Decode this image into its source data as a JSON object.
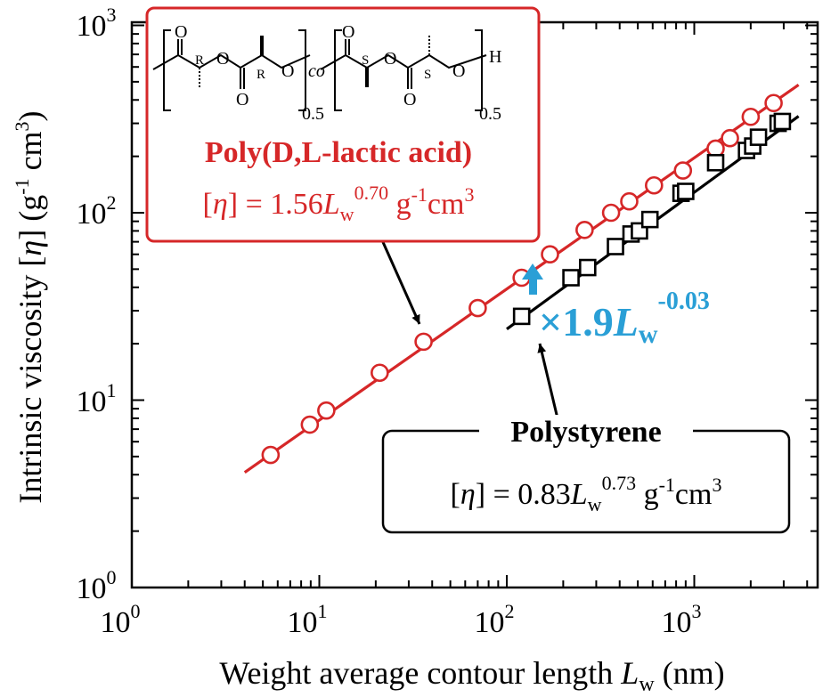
{
  "chart_data": {
    "type": "scatter",
    "title": "",
    "xscale": "log",
    "yscale": "log",
    "xlim": [
      1,
      4000
    ],
    "ylim": [
      1,
      1000
    ],
    "xticks": [
      {
        "value": 1,
        "base": "10",
        "exp": "0"
      },
      {
        "value": 10,
        "base": "10",
        "exp": "1"
      },
      {
        "value": 100,
        "base": "10",
        "exp": "2"
      },
      {
        "value": 1000,
        "base": "10",
        "exp": "3"
      }
    ],
    "yticks": [
      {
        "value": 1,
        "base": "10",
        "exp": "0"
      },
      {
        "value": 10,
        "base": "10",
        "exp": "1"
      },
      {
        "value": 100,
        "base": "10",
        "exp": "2"
      },
      {
        "value": 1000,
        "base": "10",
        "exp": "3"
      }
    ],
    "xlabel": {
      "main": "Weight average contour length ",
      "var": "L",
      "sub": "w",
      "unit": " (nm)"
    },
    "ylabel": {
      "main": "Intrinsic viscosity [",
      "var": "η",
      "mid": "] (g",
      "exp1": "-1",
      "mid2": " cm",
      "exp2": "3",
      "end": ")"
    },
    "series": [
      {
        "name": "Poly(D,L-lactic acid)",
        "color": "#d62728",
        "marker": "circle",
        "x": [
          5.5,
          8.9,
          10.9,
          21,
          36,
          70,
          120,
          170,
          260,
          360,
          450,
          610,
          870,
          1300,
          1550,
          2000,
          2650
        ],
        "y": [
          5.1,
          7.4,
          8.8,
          14,
          20.5,
          31,
          45,
          60,
          81,
          100,
          115,
          140,
          168,
          220,
          250,
          325,
          385
        ],
        "fit": {
          "a": 1.56,
          "b": 0.7,
          "xmin": 4,
          "xmax": 3600
        }
      },
      {
        "name": "Polystyrene",
        "color": "#000000",
        "marker": "square",
        "x": [
          120,
          220,
          270,
          380,
          460,
          510,
          580,
          850,
          900,
          1300,
          1900,
          2050,
          2200,
          2800,
          2950
        ],
        "y": [
          28,
          45,
          51,
          66,
          77,
          80,
          92,
          127,
          130,
          185,
          215,
          227,
          253,
          300,
          307
        ],
        "fit": {
          "a": 0.83,
          "b": 0.73,
          "xmin": 100,
          "xmax": 3600
        }
      }
    ],
    "annotations": {
      "pdla_box": {
        "title": "Poly(D,L-lactic acid)",
        "eq_prefix": "[",
        "eq_var": "η",
        "eq_mid": "] = 1.56",
        "eq_L": "L",
        "eq_sub": "w",
        "eq_exp": "0.70",
        "eq_unit": " g",
        "eq_unit_exp1": "-1",
        "eq_unit_mid": "cm",
        "eq_unit_exp2": "3",
        "border_color": "#d62728",
        "structure": {
          "atoms": {
            "o_carbonyl_1": "O",
            "o_ester_1": "O",
            "o_ester_2": "O",
            "o_ester_3": "O",
            "o_carbonyl_2": "O",
            "o_carbonyl_3": "O",
            "o_carbonyl_4": "O",
            "h_end": "H"
          },
          "stereo": {
            "r1": "R",
            "r2": "R",
            "s1": "S",
            "s2": "S"
          },
          "co": "co",
          "subscript_1": "0.5",
          "subscript_2": "0.5"
        }
      },
      "ps_box": {
        "title": "Polystyrene",
        "eq_prefix": "[",
        "eq_var": "η",
        "eq_mid": "] = 0.83",
        "eq_L": "L",
        "eq_sub": "w",
        "eq_exp": "0.73",
        "eq_unit": " g",
        "eq_unit_exp1": "-1",
        "eq_unit_mid": "cm",
        "eq_unit_exp2": "3"
      },
      "ratio": {
        "prefix": "×1.9",
        "var": "L",
        "sub": "w",
        "exp": "-0.03",
        "color": "#2a9fd6",
        "at_x": 160
      }
    }
  }
}
